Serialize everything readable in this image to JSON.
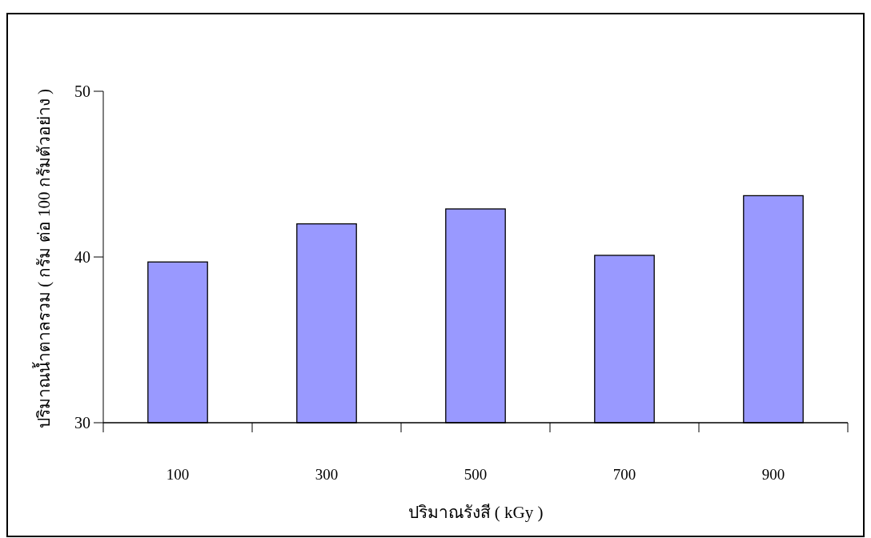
{
  "chart_data": {
    "type": "bar",
    "xlabel": "ปริมาณรังสี ( kGy )",
    "ylabel": "ปริมาณน้ำตาลรวม ( กรัม ต่อ 100 กรัมตัวอย่าง )",
    "categories": [
      "100",
      "300",
      "500",
      "700",
      "900"
    ],
    "values": [
      39.7,
      42.0,
      42.9,
      40.1,
      43.7
    ],
    "color": "#9999ff",
    "ylim": [
      30,
      50
    ],
    "yticks": [
      30,
      40,
      50
    ]
  }
}
